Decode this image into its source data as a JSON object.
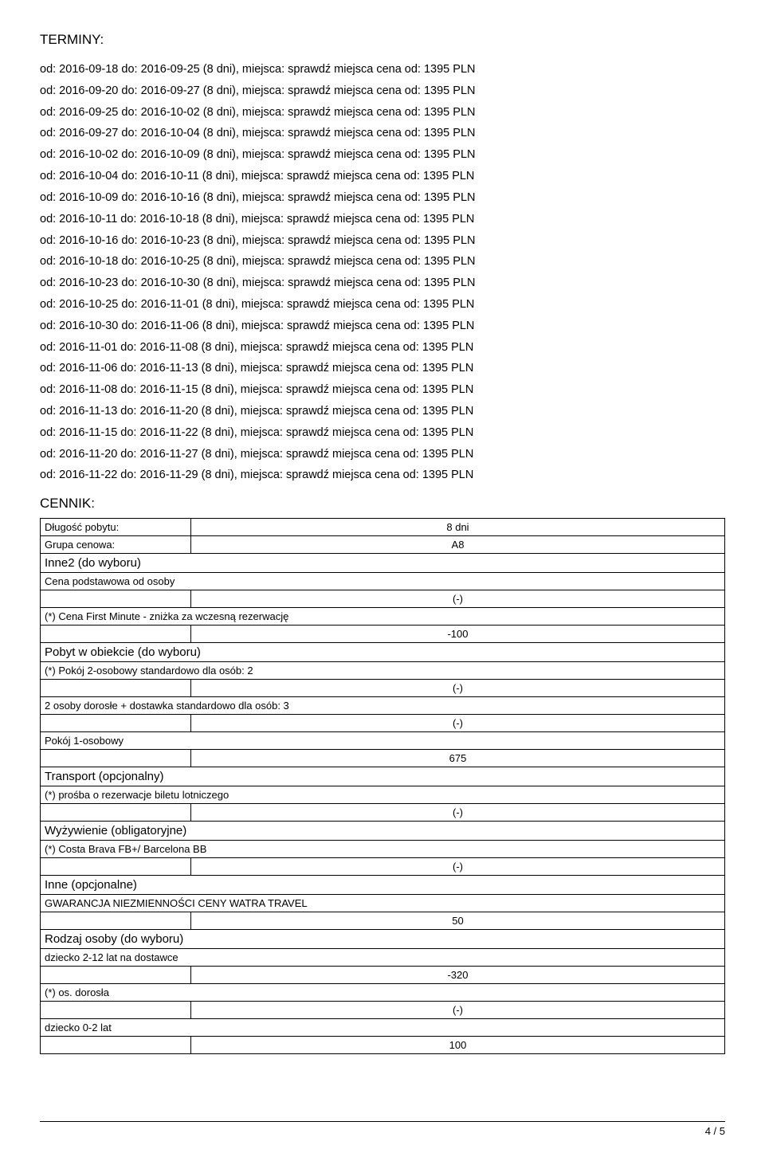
{
  "headings": {
    "terminy": "TERMINY:",
    "cennik": "CENNIK:"
  },
  "term_template": {
    "prefix_od": "od: ",
    "mid_do": " do: ",
    "days_open": " (",
    "days_label": " dni), miejsca: sprawdź miejsca cena od: ",
    "currency": " PLN"
  },
  "terms": [
    {
      "from": "2016-09-18",
      "to": "2016-09-25",
      "days": 8,
      "price": 1395
    },
    {
      "from": "2016-09-20",
      "to": "2016-09-27",
      "days": 8,
      "price": 1395
    },
    {
      "from": "2016-09-25",
      "to": "2016-10-02",
      "days": 8,
      "price": 1395
    },
    {
      "from": "2016-09-27",
      "to": "2016-10-04",
      "days": 8,
      "price": 1395
    },
    {
      "from": "2016-10-02",
      "to": "2016-10-09",
      "days": 8,
      "price": 1395
    },
    {
      "from": "2016-10-04",
      "to": "2016-10-11",
      "days": 8,
      "price": 1395
    },
    {
      "from": "2016-10-09",
      "to": "2016-10-16",
      "days": 8,
      "price": 1395
    },
    {
      "from": "2016-10-11",
      "to": "2016-10-18",
      "days": 8,
      "price": 1395
    },
    {
      "from": "2016-10-16",
      "to": "2016-10-23",
      "days": 8,
      "price": 1395
    },
    {
      "from": "2016-10-18",
      "to": "2016-10-25",
      "days": 8,
      "price": 1395
    },
    {
      "from": "2016-10-23",
      "to": "2016-10-30",
      "days": 8,
      "price": 1395
    },
    {
      "from": "2016-10-25",
      "to": "2016-11-01",
      "days": 8,
      "price": 1395
    },
    {
      "from": "2016-10-30",
      "to": "2016-11-06",
      "days": 8,
      "price": 1395
    },
    {
      "from": "2016-11-01",
      "to": "2016-11-08",
      "days": 8,
      "price": 1395
    },
    {
      "from": "2016-11-06",
      "to": "2016-11-13",
      "days": 8,
      "price": 1395
    },
    {
      "from": "2016-11-08",
      "to": "2016-11-15",
      "days": 8,
      "price": 1395
    },
    {
      "from": "2016-11-13",
      "to": "2016-11-20",
      "days": 8,
      "price": 1395
    },
    {
      "from": "2016-11-15",
      "to": "2016-11-22",
      "days": 8,
      "price": 1395
    },
    {
      "from": "2016-11-20",
      "to": "2016-11-27",
      "days": 8,
      "price": 1395
    },
    {
      "from": "2016-11-22",
      "to": "2016-11-29",
      "days": 8,
      "price": 1395
    }
  ],
  "pricing": {
    "meta": [
      {
        "label": "Długość pobytu:",
        "value": "8 dni"
      },
      {
        "label": "Grupa cenowa:",
        "value": "A8"
      }
    ],
    "sections": [
      {
        "title": "Inne2 (do wyboru)",
        "items": [
          {
            "label": "Cena podstawowa od osoby",
            "value": "(-)"
          },
          {
            "label": "(*) Cena First Minute - zniżka za wczesną rezerwację",
            "value": "-100"
          }
        ]
      },
      {
        "title": "Pobyt w obiekcie (do wyboru)",
        "items": [
          {
            "label": "(*) Pokój 2-osobowy standardowo dla osób: 2",
            "value": "(-)"
          },
          {
            "label": "2 osoby dorosłe + dostawka standardowo dla osób: 3",
            "value": "(-)"
          },
          {
            "label": "Pokój 1-osobowy",
            "value": "675"
          }
        ]
      },
      {
        "title": "Transport (opcjonalny)",
        "items": [
          {
            "label": "(*) prośba o rezerwacje biletu lotniczego",
            "value": "(-)"
          }
        ]
      },
      {
        "title": "Wyżywienie (obligatoryjne)",
        "items": [
          {
            "label": "(*) Costa Brava FB+/ Barcelona BB",
            "value": "(-)"
          }
        ]
      },
      {
        "title": "Inne (opcjonalne)",
        "items": [
          {
            "label": "GWARANCJA NIEZMIENNOŚCI CENY WATRA TRAVEL",
            "value": "50"
          }
        ]
      },
      {
        "title": "Rodzaj osoby (do wyboru)",
        "items": [
          {
            "label": "dziecko 2-12 lat na dostawce",
            "value": "-320"
          },
          {
            "label": "(*) os. dorosła",
            "value": "(-)"
          },
          {
            "label": "dziecko 0-2 lat",
            "value": "100"
          }
        ]
      }
    ]
  },
  "footer": {
    "page": "4 / 5"
  },
  "style": {
    "text_color": "#000000",
    "background": "#ffffff",
    "border_color": "#000000",
    "base_fontsize": 14
  }
}
